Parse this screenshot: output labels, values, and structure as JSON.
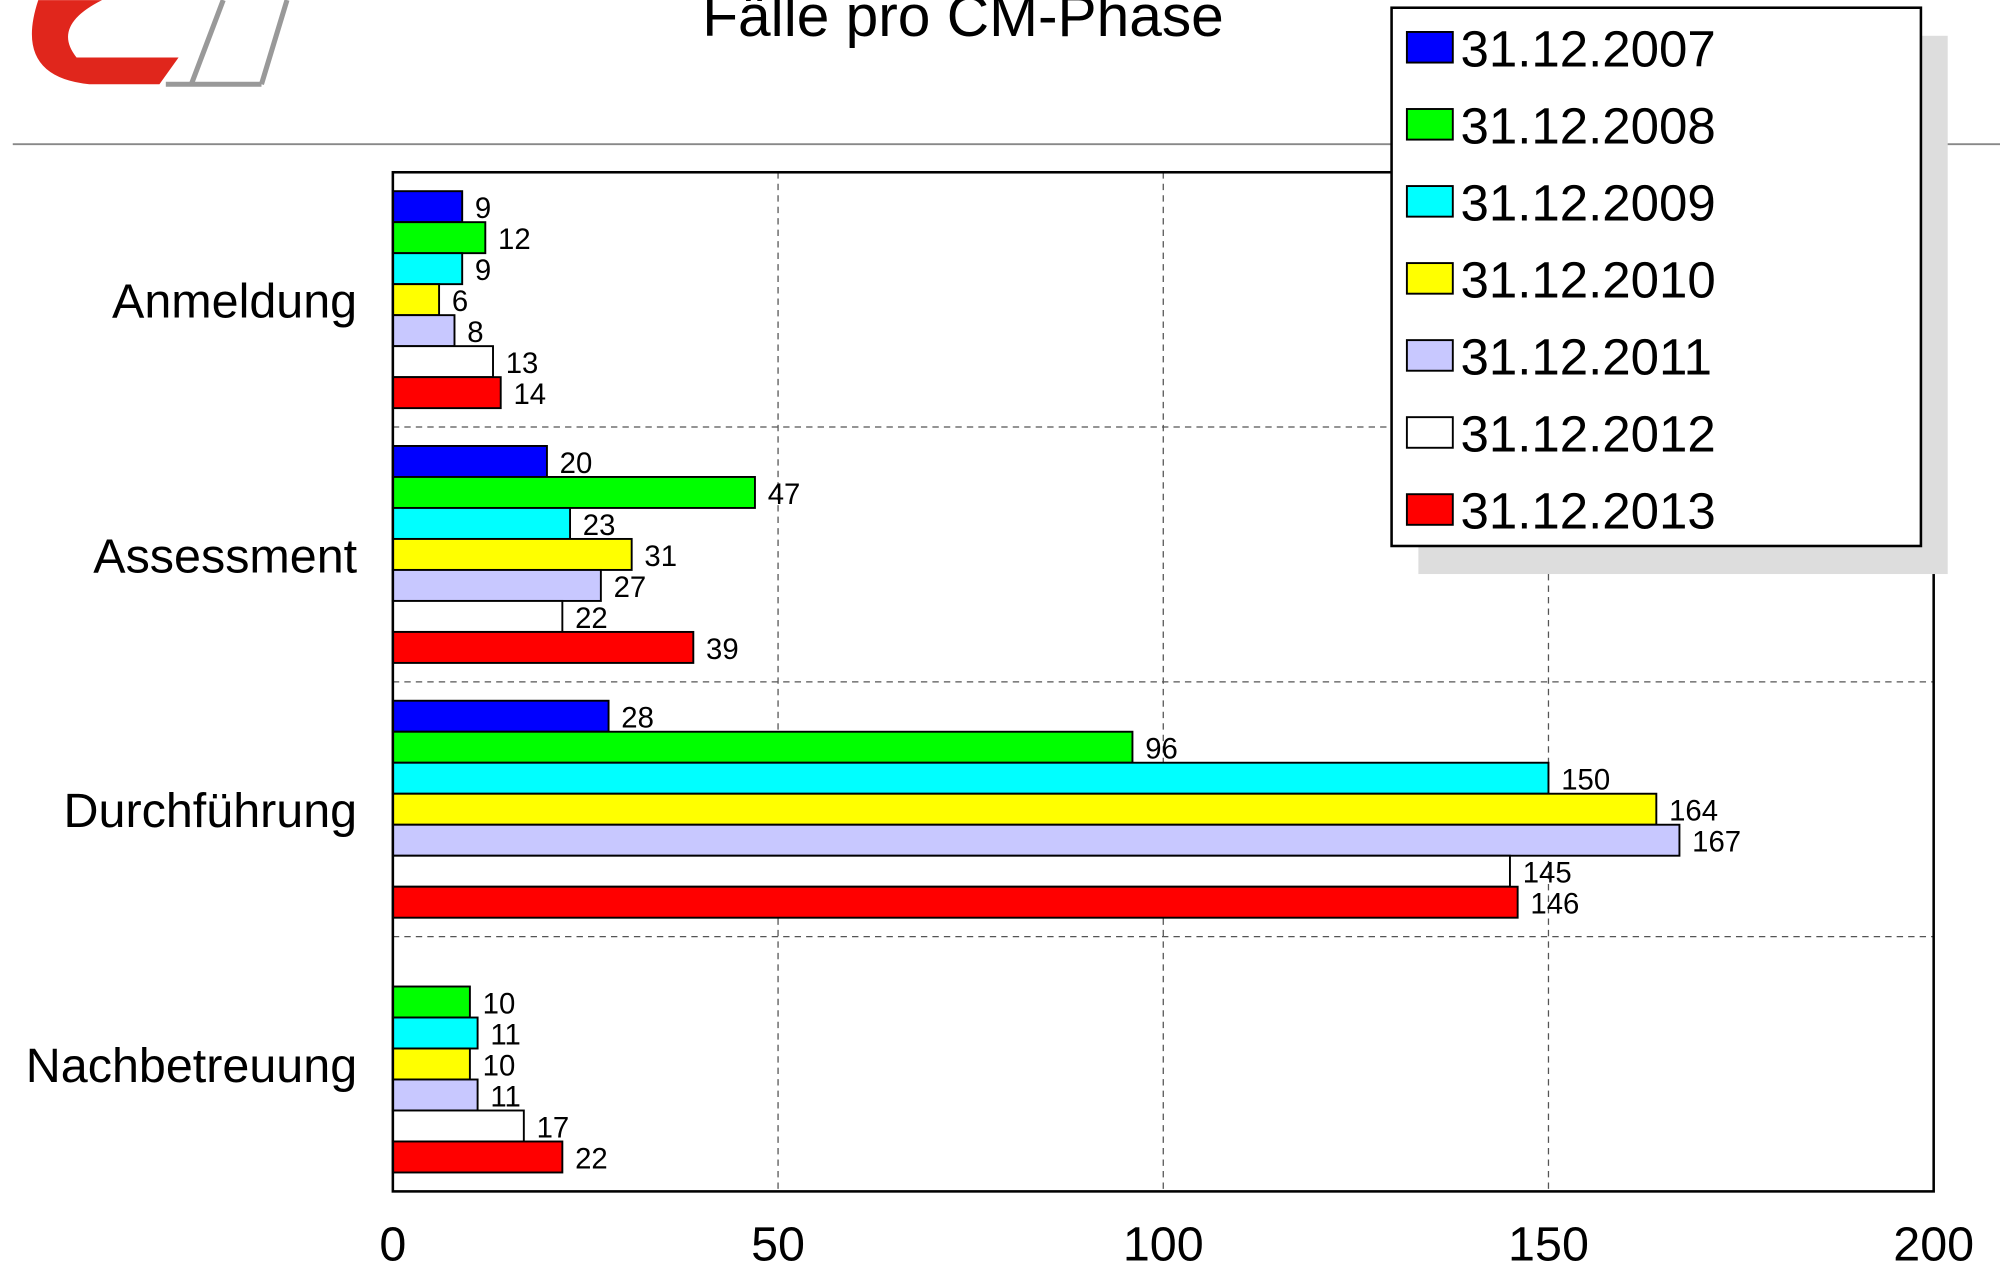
{
  "chart_data": {
    "type": "barh",
    "title": "Fälle pro CM-Phase",
    "categories": [
      "Anmeldung",
      "Assessment",
      "Durchführung",
      "Nachbetreuung"
    ],
    "series": [
      {
        "name": "31.12.2007",
        "color": "#0000ff",
        "values": [
          9,
          20,
          28,
          null
        ]
      },
      {
        "name": "31.12.2008",
        "color": "#00ff00",
        "values": [
          12,
          47,
          96,
          10
        ]
      },
      {
        "name": "31.12.2009",
        "color": "#00ffff",
        "values": [
          9,
          23,
          150,
          11
        ]
      },
      {
        "name": "31.12.2010",
        "color": "#ffff00",
        "values": [
          6,
          31,
          164,
          10
        ]
      },
      {
        "name": "31.12.2011",
        "color": "#c8c8ff",
        "values": [
          8,
          27,
          167,
          11
        ]
      },
      {
        "name": "31.12.2012",
        "color": "#ffffff",
        "values": [
          13,
          22,
          145,
          17
        ]
      },
      {
        "name": "31.12.2013",
        "color": "#ff0000",
        "values": [
          14,
          39,
          146,
          22
        ]
      }
    ],
    "xlim": [
      0,
      200
    ],
    "xticks": [
      0,
      50,
      100,
      150,
      200
    ],
    "grid": true,
    "legend": "upper right"
  }
}
